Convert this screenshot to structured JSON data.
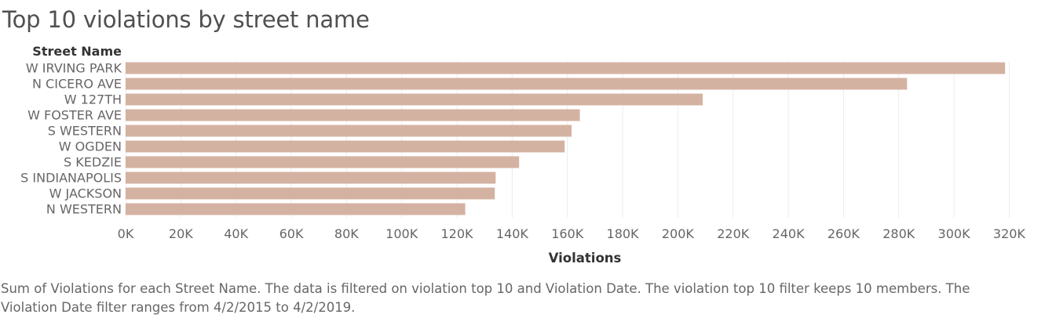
{
  "title": "Top 10 violations by street name",
  "caption": "Sum of Violations for each Street Name. The data is filtered on violation top 10 and Violation Date. The violation top 10 filter keeps 10 members. The Violation Date filter ranges from 4/2/2015 to 4/2/2019.",
  "colors": {
    "bar": "#d4b2a2",
    "text": "#666666",
    "grid": "#ececec"
  },
  "chart_data": {
    "type": "bar",
    "orientation": "horizontal",
    "category_header": "Street Name",
    "categories": [
      "W IRVING PARK",
      "N CICERO AVE",
      "W 127TH",
      "W FOSTER AVE",
      "S WESTERN",
      "W OGDEN",
      "S KEDZIE",
      "S INDIANAPOLIS",
      "W JACKSON",
      "N WESTERN"
    ],
    "values": [
      318500,
      283000,
      209000,
      164500,
      161500,
      159000,
      142500,
      134000,
      133700,
      123000
    ],
    "xlabel": "Violations",
    "xlim": [
      0,
      325000
    ],
    "xticks": [
      0,
      20000,
      40000,
      60000,
      80000,
      100000,
      120000,
      140000,
      160000,
      180000,
      200000,
      220000,
      240000,
      260000,
      280000,
      300000,
      320000
    ],
    "xtick_labels": [
      "0K",
      "20K",
      "40K",
      "60K",
      "80K",
      "100K",
      "120K",
      "140K",
      "160K",
      "180K",
      "200K",
      "220K",
      "240K",
      "260K",
      "280K",
      "300K",
      "320K"
    ],
    "grid": "vertical"
  }
}
